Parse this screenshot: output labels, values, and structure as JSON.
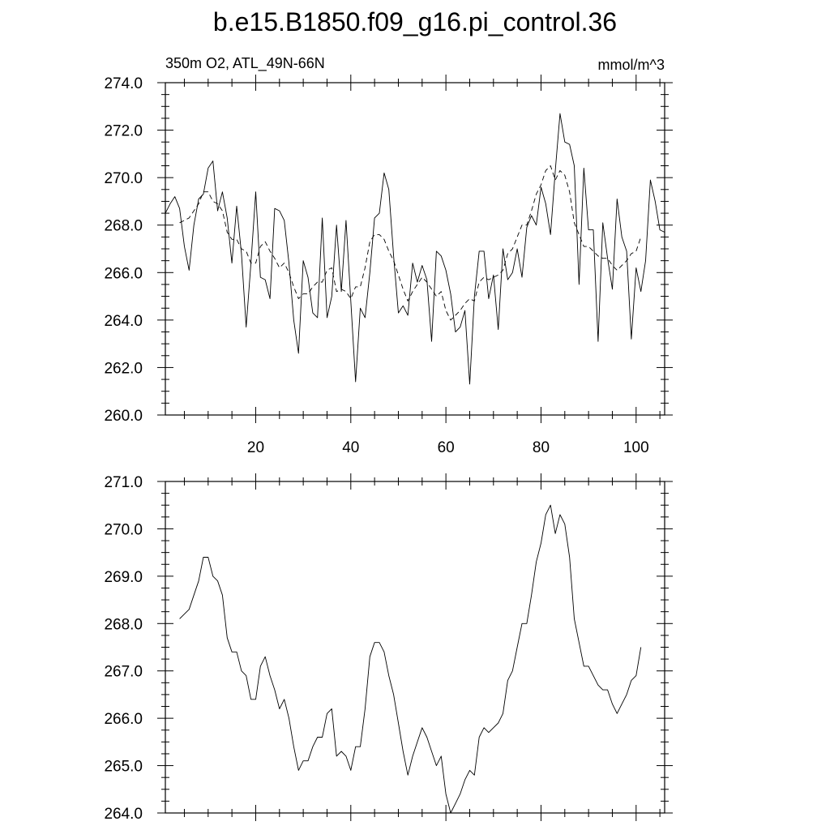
{
  "title": "b.e15.B1850.f09_g16.pi_control.36",
  "chart_data": [
    {
      "type": "line",
      "left_label": "350m O2, ATL_49N-66N",
      "right_label": "mmol/m^3",
      "xlim": [
        1,
        106
      ],
      "ylim": [
        260,
        274
      ],
      "x_ticks": [
        20,
        40,
        60,
        80,
        100
      ],
      "y_ticks": [
        "260.0",
        "262.0",
        "264.0",
        "266.0",
        "268.0",
        "270.0",
        "272.0",
        "274.0"
      ],
      "x_minor_step": 5,
      "y_minor_step": 0.5,
      "series": [
        {
          "style": "solid",
          "x_start": 1,
          "values": [
            268.5,
            268.9,
            269.2,
            268.7,
            267.1,
            266.1,
            268.0,
            269.1,
            269.3,
            270.4,
            270.7,
            268.6,
            269.4,
            268.3,
            266.4,
            268.8,
            266.8,
            263.7,
            266.4,
            269.4,
            265.8,
            265.7,
            264.9,
            268.7,
            268.6,
            268.2,
            266.4,
            264.0,
            262.6,
            266.5,
            265.8,
            264.3,
            264.1,
            268.3,
            264.1,
            265.0,
            268.0,
            265.2,
            268.2,
            264.8,
            261.4,
            264.5,
            264.1,
            266.0,
            268.3,
            268.5,
            270.2,
            269.5,
            266.7,
            264.3,
            264.6,
            264.2,
            266.4,
            265.6,
            266.3,
            265.7,
            263.1,
            266.9,
            266.7,
            266.1,
            265.1,
            263.5,
            263.7,
            264.4,
            261.3,
            265.0,
            266.9,
            266.9,
            264.9,
            265.9,
            263.6,
            267.0,
            265.7,
            266.0,
            267.0,
            265.8,
            267.9,
            268.4,
            268.0,
            269.6,
            268.9,
            267.6,
            270.3,
            272.7,
            271.5,
            271.4,
            270.5,
            265.5,
            270.4,
            267.8,
            267.8,
            263.1,
            268.1,
            266.6,
            265.3,
            269.1,
            267.5,
            266.9,
            263.2,
            266.2,
            265.2,
            266.5,
            269.9,
            269.0,
            267.8,
            267.7
          ]
        },
        {
          "style": "dashed",
          "x_start": 4,
          "values": [
            268.1,
            268.2,
            268.3,
            268.6,
            268.9,
            269.4,
            269.4,
            269.0,
            268.9,
            268.6,
            267.7,
            267.4,
            267.4,
            267.0,
            266.9,
            266.4,
            266.4,
            267.1,
            267.3,
            266.9,
            266.6,
            266.2,
            266.4,
            266.0,
            265.4,
            264.9,
            265.1,
            265.1,
            265.4,
            265.6,
            265.6,
            266.1,
            266.2,
            265.2,
            265.3,
            265.2,
            264.9,
            265.4,
            265.4,
            266.2,
            267.3,
            267.6,
            267.6,
            267.4,
            266.9,
            266.5,
            265.9,
            265.3,
            264.8,
            265.2,
            265.5,
            265.8,
            265.6,
            265.3,
            265.0,
            265.2,
            264.4,
            264.0,
            264.2,
            264.4,
            264.7,
            264.9,
            264.8,
            265.6,
            265.8,
            265.7,
            265.8,
            265.9,
            266.1,
            266.8,
            267.0,
            267.5,
            268.0,
            268.0,
            268.6,
            269.3,
            269.7,
            270.3,
            270.5,
            269.9,
            270.3,
            270.1,
            269.4,
            268.1,
            267.6,
            267.1,
            267.1,
            266.9,
            266.7,
            266.6,
            266.6,
            266.3,
            266.1,
            266.3,
            266.5,
            266.8,
            266.9,
            267.5
          ]
        }
      ]
    },
    {
      "type": "line",
      "xlim": [
        1,
        106
      ],
      "ylim": [
        264,
        271
      ],
      "y_ticks": [
        "264.0",
        "265.0",
        "266.0",
        "267.0",
        "268.0",
        "269.0",
        "270.0",
        "271.0"
      ],
      "x_minor_step": 5,
      "y_minor_step": 0.25,
      "series": [
        {
          "style": "solid",
          "x_start": 4,
          "values": [
            268.1,
            268.2,
            268.3,
            268.6,
            268.9,
            269.4,
            269.4,
            269.0,
            268.9,
            268.6,
            267.7,
            267.4,
            267.4,
            267.0,
            266.9,
            266.4,
            266.4,
            267.1,
            267.3,
            266.9,
            266.6,
            266.2,
            266.4,
            266.0,
            265.4,
            264.9,
            265.1,
            265.1,
            265.4,
            265.6,
            265.6,
            266.1,
            266.2,
            265.2,
            265.3,
            265.2,
            264.9,
            265.4,
            265.4,
            266.2,
            267.3,
            267.6,
            267.6,
            267.4,
            266.9,
            266.5,
            265.9,
            265.3,
            264.8,
            265.2,
            265.5,
            265.8,
            265.6,
            265.3,
            265.0,
            265.2,
            264.4,
            264.0,
            264.2,
            264.4,
            264.7,
            264.9,
            264.8,
            265.6,
            265.8,
            265.7,
            265.8,
            265.9,
            266.1,
            266.8,
            267.0,
            267.5,
            268.0,
            268.0,
            268.6,
            269.3,
            269.7,
            270.3,
            270.5,
            269.9,
            270.3,
            270.1,
            269.4,
            268.1,
            267.6,
            267.1,
            267.1,
            266.9,
            266.7,
            266.6,
            266.6,
            266.3,
            266.1,
            266.3,
            266.5,
            266.8,
            266.9,
            267.5
          ]
        }
      ]
    }
  ]
}
